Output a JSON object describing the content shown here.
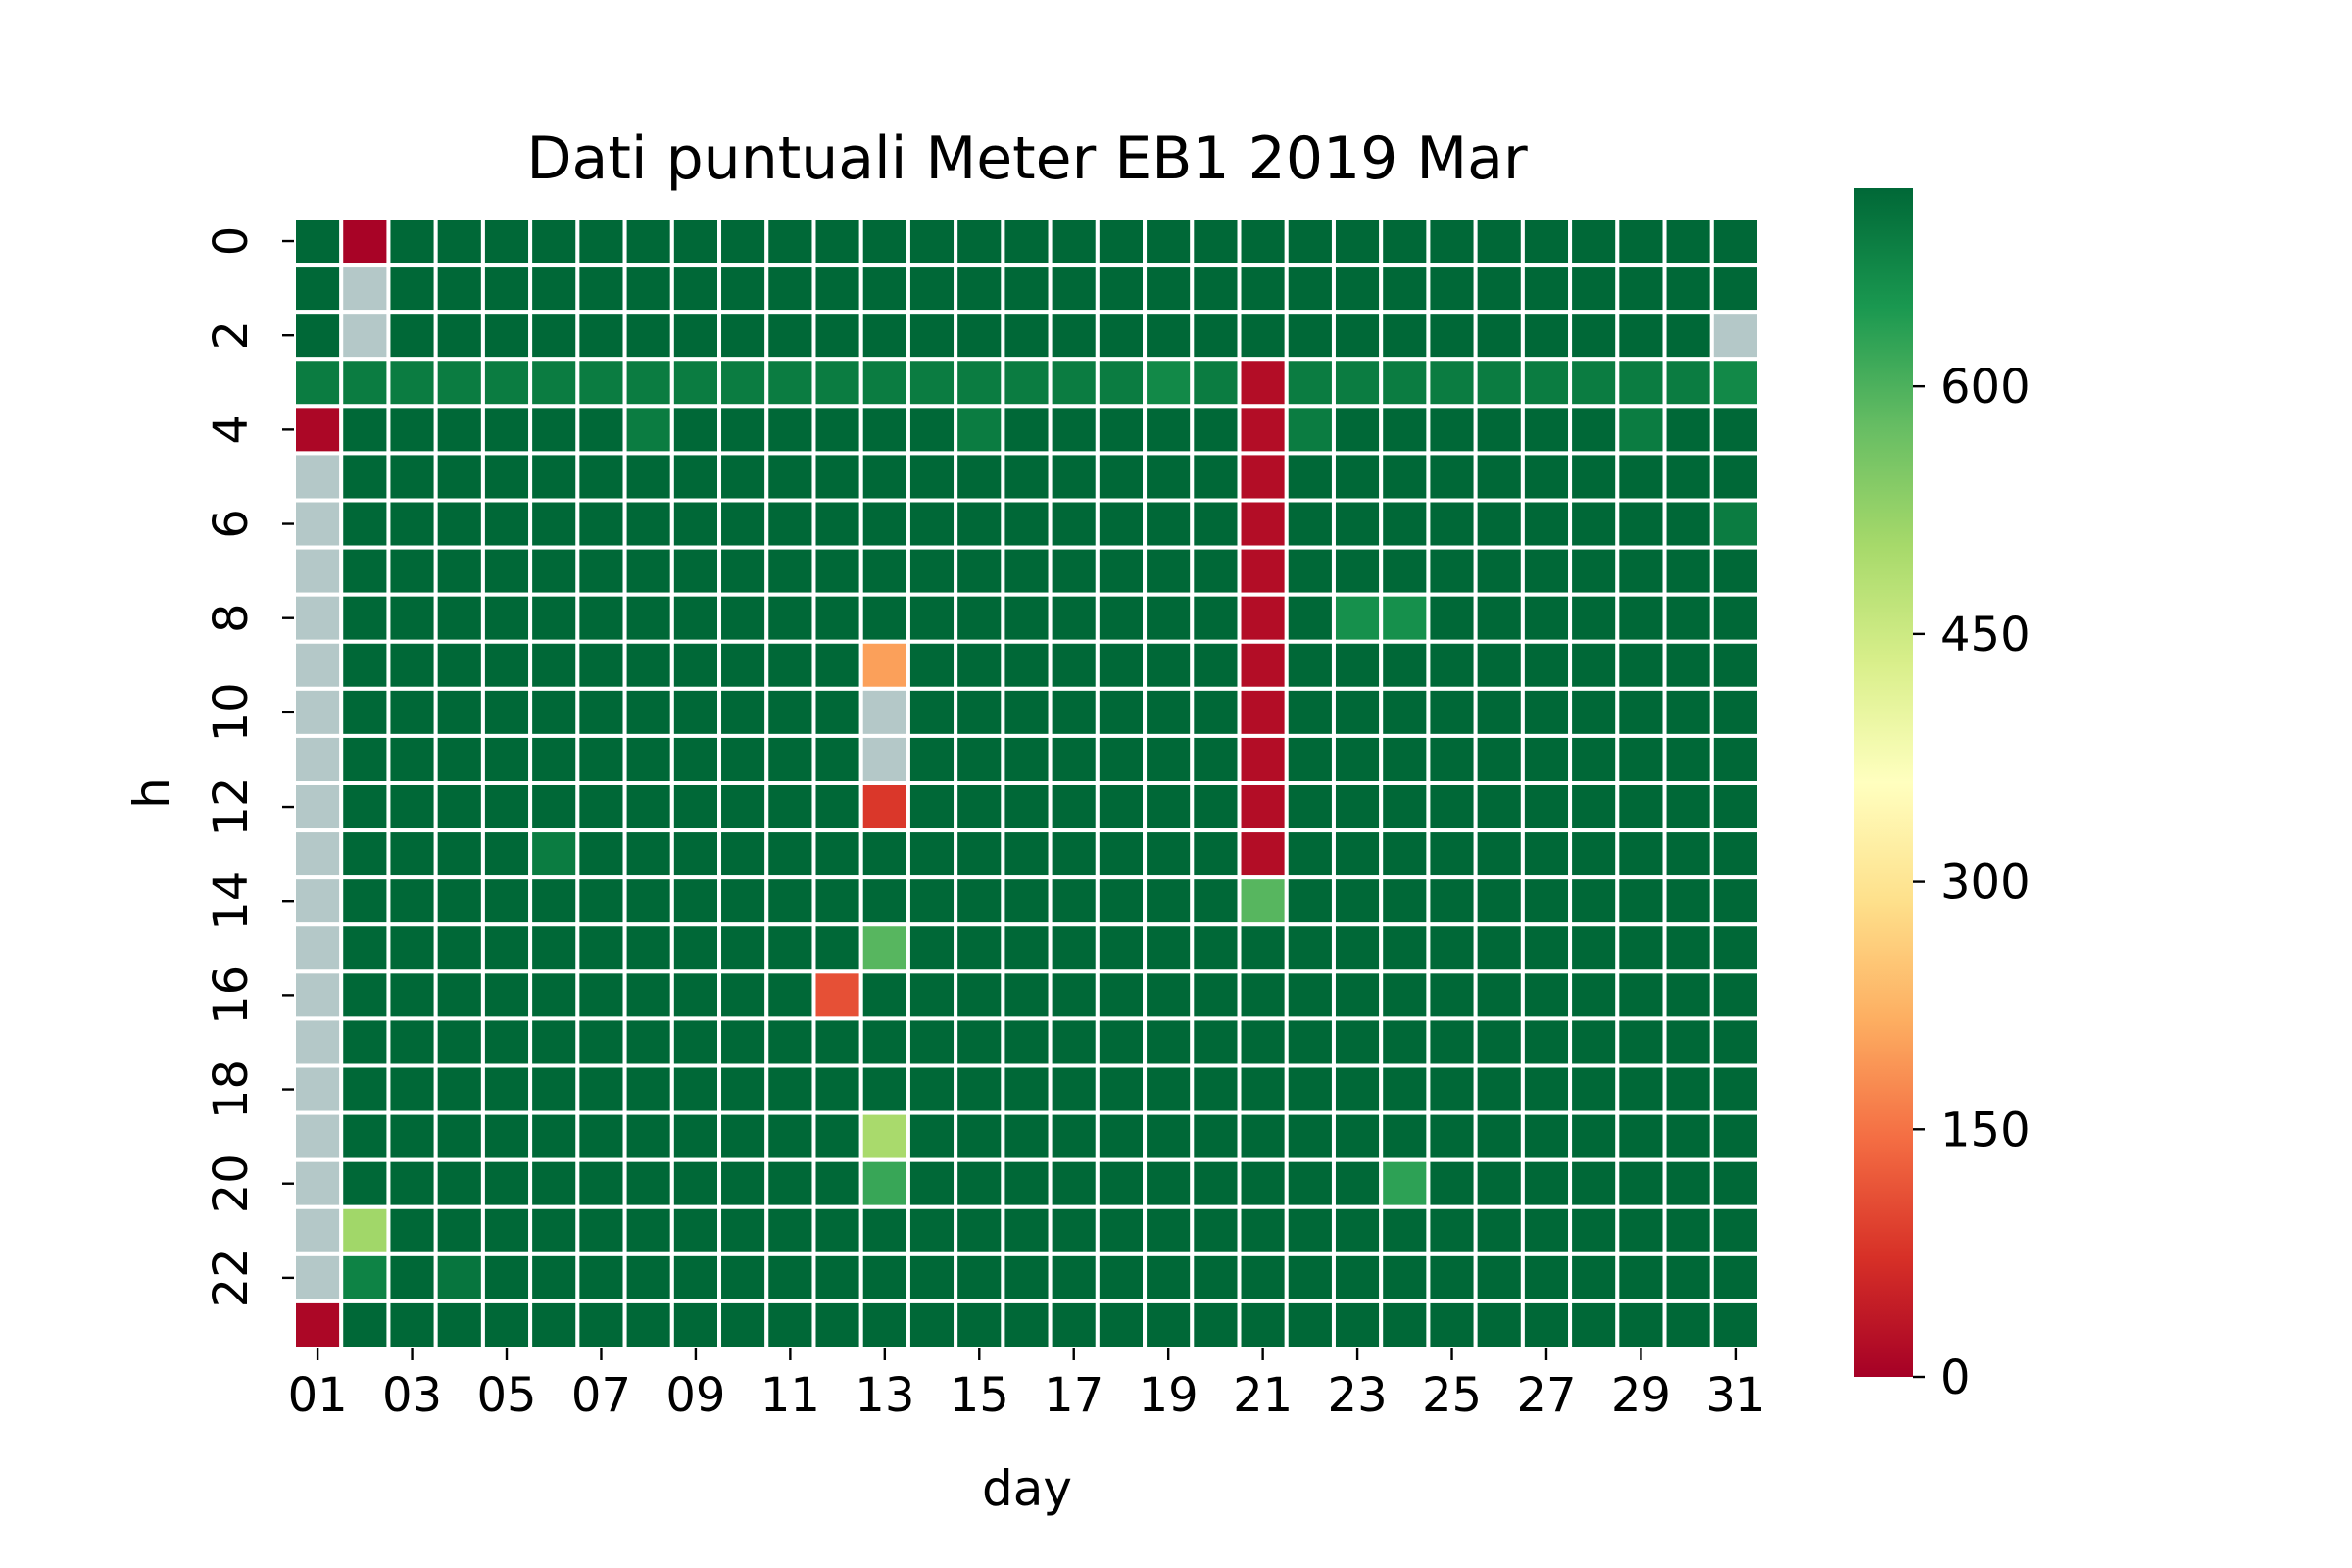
{
  "chart_data": {
    "type": "heatmap",
    "title": "Dati puntuali Meter EB1 2019 Mar",
    "xlabel": "day",
    "ylabel": "h",
    "x_tick_labels": [
      "01",
      "03",
      "05",
      "07",
      "09",
      "11",
      "13",
      "15",
      "17",
      "19",
      "21",
      "23",
      "25",
      "27",
      "29",
      "31"
    ],
    "y_tick_labels": [
      "0",
      "2",
      "4",
      "6",
      "8",
      "10",
      "12",
      "14",
      "16",
      "18",
      "20",
      "22"
    ],
    "colorbar_ticks": [
      0,
      150,
      300,
      450,
      600
    ],
    "colorbar_tick_labels": [
      "0",
      "150",
      "300",
      "450",
      "600"
    ],
    "value_range": [
      0,
      720
    ],
    "colormap": "RdYlGn",
    "missing_color": "#b4c8c8",
    "missing_label": "NaN",
    "days": 31,
    "hours": 24,
    "base_value": 720,
    "default_row_values": {
      "3": 690
    },
    "overrides": [
      {
        "day": 2,
        "h": 0,
        "v": 5
      },
      {
        "day": 2,
        "h": 1,
        "v": null
      },
      {
        "day": 2,
        "h": 2,
        "v": null
      },
      {
        "day": 31,
        "h": 2,
        "v": null
      },
      {
        "day": 21,
        "h": 3,
        "v": 20
      },
      {
        "day": 19,
        "h": 3,
        "v": 670
      },
      {
        "day": 31,
        "h": 3,
        "v": 670
      },
      {
        "day": 1,
        "h": 4,
        "v": 10
      },
      {
        "day": 8,
        "h": 4,
        "v": 690
      },
      {
        "day": 15,
        "h": 4,
        "v": 690
      },
      {
        "day": 22,
        "h": 4,
        "v": 690
      },
      {
        "day": 29,
        "h": 4,
        "v": 690
      },
      {
        "day": 31,
        "h": 6,
        "v": 690
      },
      {
        "day": 23,
        "h": 8,
        "v": 660
      },
      {
        "day": 24,
        "h": 8,
        "v": 660
      },
      {
        "day": 13,
        "h": 9,
        "v": 200
      },
      {
        "day": 13,
        "h": 10,
        "v": null
      },
      {
        "day": 13,
        "h": 11,
        "v": null
      },
      {
        "day": 13,
        "h": 12,
        "v": 80
      },
      {
        "day": 6,
        "h": 13,
        "v": 690
      },
      {
        "day": 21,
        "h": 14,
        "v": 590
      },
      {
        "day": 13,
        "h": 15,
        "v": 590
      },
      {
        "day": 12,
        "h": 16,
        "v": 110
      },
      {
        "day": 13,
        "h": 19,
        "v": 500
      },
      {
        "day": 13,
        "h": 20,
        "v": 620
      },
      {
        "day": 24,
        "h": 20,
        "v": 630
      },
      {
        "day": 2,
        "h": 21,
        "v": 510
      },
      {
        "day": 2,
        "h": 22,
        "v": 680
      },
      {
        "day": 4,
        "h": 22,
        "v": 700
      },
      {
        "day": 1,
        "h": 23,
        "v": 10
      }
    ],
    "column_ranges": [
      {
        "day": 1,
        "h_from": 5,
        "h_to": 22,
        "v": null
      },
      {
        "day": 21,
        "h_from": 4,
        "h_to": 13,
        "v": 20
      }
    ]
  }
}
